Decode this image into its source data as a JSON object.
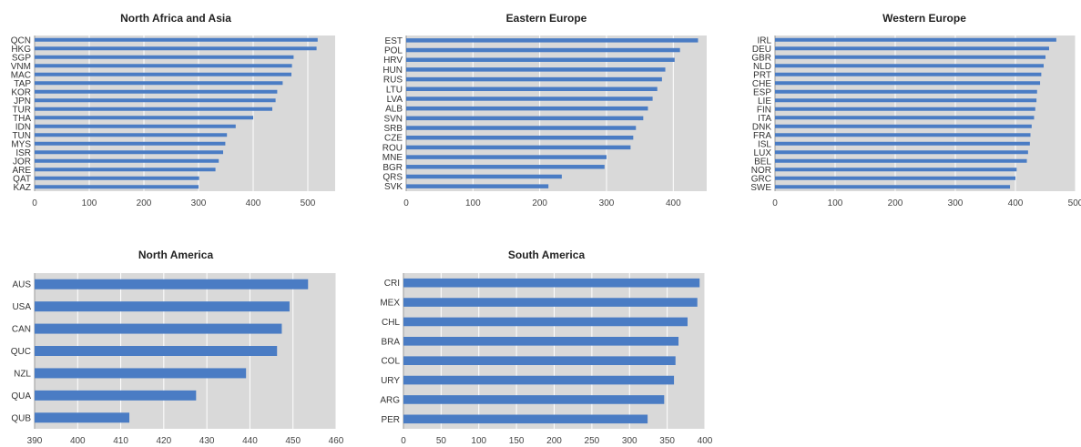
{
  "chart_data": [
    {
      "type": "bar",
      "orientation": "horizontal",
      "title": "North Africa and Asia",
      "categories": [
        "QCN",
        "HKG",
        "SGP",
        "VNM",
        "MAC",
        "TAP",
        "KOR",
        "JPN",
        "TUR",
        "THA",
        "IDN",
        "TUN",
        "MYS",
        "ISR",
        "JOR",
        "ARE",
        "QAT",
        "KAZ"
      ],
      "values": [
        518,
        516,
        474,
        471,
        470,
        454,
        444,
        441,
        435,
        400,
        368,
        352,
        349,
        345,
        337,
        331,
        301,
        300
      ],
      "xlim": [
        0,
        550
      ],
      "xticks": [
        0,
        100,
        200,
        300,
        400,
        500
      ],
      "grid": true,
      "colors": {
        "bar": "#4a7cc4",
        "plot_bg": "#d9d9d9",
        "grid": "#ffffff"
      }
    },
    {
      "type": "bar",
      "orientation": "horizontal",
      "title": "Eastern Europe",
      "categories": [
        "EST",
        "POL",
        "HRV",
        "HUN",
        "RUS",
        "LTU",
        "LVA",
        "ALB",
        "SVN",
        "SRB",
        "CZE",
        "ROU",
        "MNE",
        "BGR",
        "QRS",
        "SVK"
      ],
      "values": [
        437,
        410,
        402,
        388,
        383,
        376,
        369,
        362,
        355,
        344,
        340,
        336,
        300,
        297,
        233,
        213
      ],
      "xlim": [
        0,
        450
      ],
      "xticks": [
        0,
        100,
        200,
        300,
        400
      ],
      "grid": true,
      "colors": {
        "bar": "#4a7cc4",
        "plot_bg": "#d9d9d9",
        "grid": "#ffffff"
      }
    },
    {
      "type": "bar",
      "orientation": "horizontal",
      "title": "Western Europe",
      "categories": [
        "IRL",
        "DEU",
        "GBR",
        "NLD",
        "PRT",
        "CHE",
        "ESP",
        "LIE",
        "FIN",
        "ITA",
        "DNK",
        "FRA",
        "ISL",
        "LUX",
        "BEL",
        "NOR",
        "GRC",
        "SWE"
      ],
      "values": [
        468,
        456,
        450,
        447,
        443,
        441,
        436,
        435,
        433,
        431,
        427,
        425,
        424,
        421,
        419,
        402,
        400,
        391
      ],
      "xlim": [
        0,
        500
      ],
      "xticks": [
        0,
        100,
        200,
        300,
        400,
        500
      ],
      "grid": true,
      "colors": {
        "bar": "#4a7cc4",
        "plot_bg": "#d9d9d9",
        "grid": "#ffffff"
      }
    },
    {
      "type": "bar",
      "orientation": "horizontal",
      "title": "North America",
      "categories": [
        "AUS",
        "USA",
        "CAN",
        "QUC",
        "NZL",
        "QUA",
        "QUB"
      ],
      "values": [
        453.5,
        449.2,
        447.4,
        446.3,
        439.1,
        427.5,
        412.0
      ],
      "xlim": [
        390,
        460
      ],
      "xticks": [
        390,
        400,
        410,
        420,
        430,
        440,
        450,
        460
      ],
      "grid": true,
      "colors": {
        "bar": "#4a7cc4",
        "plot_bg": "#d9d9d9",
        "grid": "#ffffff"
      }
    },
    {
      "type": "bar",
      "orientation": "horizontal",
      "title": "South America",
      "categories": [
        "CRI",
        "MEX",
        "CHL",
        "BRA",
        "COL",
        "URY",
        "ARG",
        "PER"
      ],
      "values": [
        393,
        390,
        377,
        365,
        361,
        359,
        346,
        324
      ],
      "xlim": [
        0,
        400
      ],
      "xticks": [
        0,
        50,
        100,
        150,
        200,
        250,
        300,
        350,
        400
      ],
      "grid": true,
      "colors": {
        "bar": "#4a7cc4",
        "plot_bg": "#d9d9d9",
        "grid": "#ffffff"
      }
    }
  ]
}
